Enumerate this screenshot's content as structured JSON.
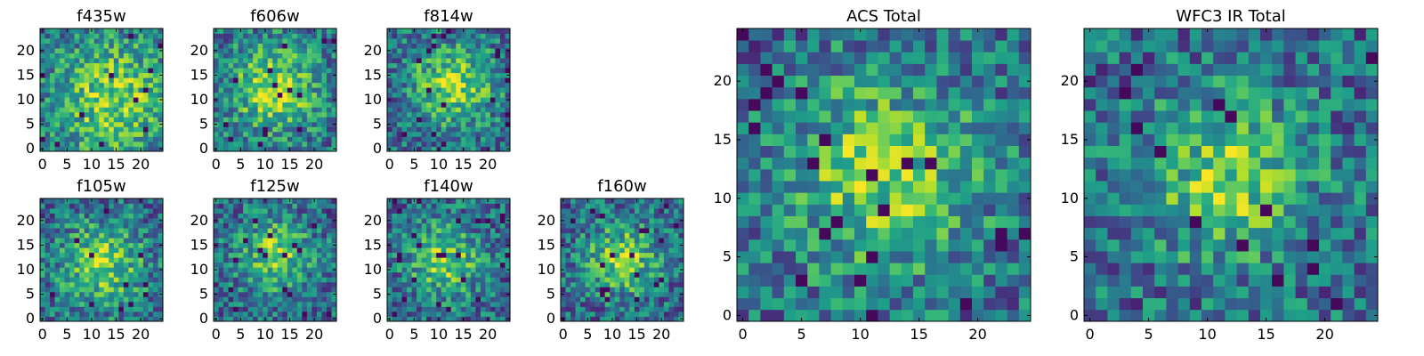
{
  "chart_data": [
    {
      "type": "heatmap",
      "title": "f435w",
      "xlim": [
        -0.5,
        24.5
      ],
      "ylim": [
        -0.5,
        24.5
      ],
      "xticks": [
        0,
        5,
        10,
        15,
        20
      ],
      "yticks": [
        0,
        5,
        10,
        15,
        20
      ],
      "colormap": "viridis",
      "grid_size": [
        25,
        25
      ],
      "peak_center": [
        14,
        10
      ],
      "peak_spread": 9
    },
    {
      "type": "heatmap",
      "title": "f606w",
      "xlim": [
        -0.5,
        24.5
      ],
      "ylim": [
        -0.5,
        24.5
      ],
      "xticks": [
        0,
        5,
        10,
        15,
        20
      ],
      "yticks": [
        0,
        5,
        10,
        15,
        20
      ],
      "colormap": "viridis",
      "grid_size": [
        25,
        25
      ],
      "peak_center": [
        12,
        12
      ],
      "peak_spread": 7
    },
    {
      "type": "heatmap",
      "title": "f814w",
      "xlim": [
        -0.5,
        24.5
      ],
      "ylim": [
        -0.5,
        24.5
      ],
      "xticks": [
        0,
        5,
        10,
        15,
        20
      ],
      "yticks": [
        0,
        5,
        10,
        15,
        20
      ],
      "colormap": "viridis",
      "grid_size": [
        25,
        25
      ],
      "peak_center": [
        13,
        13
      ],
      "peak_spread": 6
    },
    {
      "type": "heatmap",
      "title": "f105w",
      "xlim": [
        -0.5,
        24.5
      ],
      "ylim": [
        -0.5,
        24.5
      ],
      "xticks": [
        0,
        5,
        10,
        15,
        20
      ],
      "yticks": [
        0,
        5,
        10,
        15,
        20
      ],
      "colormap": "viridis",
      "grid_size": [
        25,
        25
      ],
      "peak_center": [
        12,
        11
      ],
      "peak_spread": 6
    },
    {
      "type": "heatmap",
      "title": "f125w",
      "xlim": [
        -0.5,
        24.5
      ],
      "ylim": [
        -0.5,
        24.5
      ],
      "xticks": [
        0,
        5,
        10,
        15,
        20
      ],
      "yticks": [
        0,
        5,
        10,
        15,
        20
      ],
      "colormap": "viridis",
      "grid_size": [
        25,
        25
      ],
      "peak_center": [
        12,
        13
      ],
      "peak_spread": 5
    },
    {
      "type": "heatmap",
      "title": "f140w",
      "xlim": [
        -0.5,
        24.5
      ],
      "ylim": [
        -0.5,
        24.5
      ],
      "xticks": [
        0,
        5,
        10,
        15,
        20
      ],
      "yticks": [
        0,
        5,
        10,
        15,
        20
      ],
      "colormap": "viridis",
      "grid_size": [
        25,
        25
      ],
      "peak_center": [
        11,
        12
      ],
      "peak_spread": 5
    },
    {
      "type": "heatmap",
      "title": "f160w",
      "xlim": [
        -0.5,
        24.5
      ],
      "ylim": [
        -0.5,
        24.5
      ],
      "xticks": [
        0,
        5,
        10,
        15,
        20
      ],
      "yticks": [
        0,
        5,
        10,
        15,
        20
      ],
      "colormap": "viridis",
      "grid_size": [
        25,
        25
      ],
      "peak_center": [
        12,
        12
      ],
      "peak_spread": 5
    },
    {
      "type": "heatmap",
      "title": "ACS Total",
      "xlim": [
        -0.5,
        24.5
      ],
      "ylim": [
        -0.5,
        24.5
      ],
      "xticks": [
        0,
        5,
        10,
        15,
        20
      ],
      "yticks": [
        0,
        5,
        10,
        15,
        20
      ],
      "colormap": "viridis",
      "grid_size": [
        25,
        25
      ],
      "peak_center": [
        12,
        12
      ],
      "peak_spread": 6
    },
    {
      "type": "heatmap",
      "title": "WFC3 IR Total",
      "xlim": [
        -0.5,
        24.5
      ],
      "ylim": [
        -0.5,
        24.5
      ],
      "xticks": [
        0,
        5,
        10,
        15,
        20
      ],
      "yticks": [
        0,
        5,
        10,
        15,
        20
      ],
      "colormap": "viridis",
      "grid_size": [
        25,
        25
      ],
      "peak_center": [
        12,
        12
      ],
      "peak_spread": 5
    }
  ]
}
